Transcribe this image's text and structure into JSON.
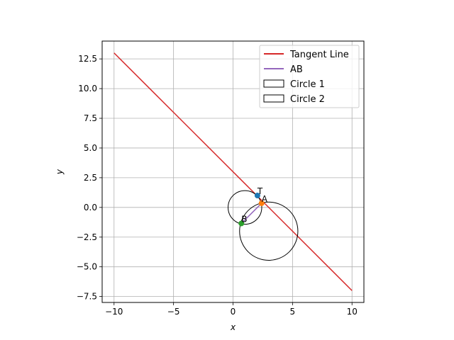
{
  "chart_data": {
    "type": "line",
    "xlabel": "x",
    "ylabel": "y",
    "xlim": [
      -11,
      11
    ],
    "ylim": [
      -8,
      14
    ],
    "x_ticks": [
      -10,
      -5,
      0,
      5,
      10
    ],
    "x_tick_labels": [
      "−10",
      "−5",
      "0",
      "5",
      "10"
    ],
    "y_ticks": [
      -7.5,
      -5.0,
      -2.5,
      0.0,
      2.5,
      5.0,
      7.5,
      10.0,
      12.5
    ],
    "y_tick_labels": [
      "−7.5",
      "−5.0",
      "−2.5",
      "0.0",
      "2.5",
      "5.0",
      "7.5",
      "10.0",
      "12.5"
    ],
    "grid": true,
    "legend_placement": "top-right",
    "series": [
      {
        "name": "Tangent Line",
        "kind": "line",
        "color": "#d62728",
        "x": [
          -10,
          10
        ],
        "y": [
          13,
          -7
        ]
      },
      {
        "name": "AB",
        "kind": "line",
        "color": "#9467bd",
        "x": [
          2.4,
          0.7
        ],
        "y": [
          0.35,
          -1.35
        ]
      }
    ],
    "circles": [
      {
        "name": "Circle 1",
        "cx": 1.0,
        "cy": 0.0,
        "r": 1.414,
        "color": "#000000"
      },
      {
        "name": "Circle 2",
        "cx": 3.0,
        "cy": -2.0,
        "r": 2.45,
        "color": "#000000"
      }
    ],
    "points": [
      {
        "label": "T",
        "x": 2.05,
        "y": 1.0,
        "color": "#1f77b4"
      },
      {
        "label": "A",
        "x": 2.4,
        "y": 0.35,
        "color": "#ff7f0e"
      },
      {
        "label": "B",
        "x": 0.7,
        "y": -1.35,
        "color": "#2ca02c"
      }
    ]
  }
}
